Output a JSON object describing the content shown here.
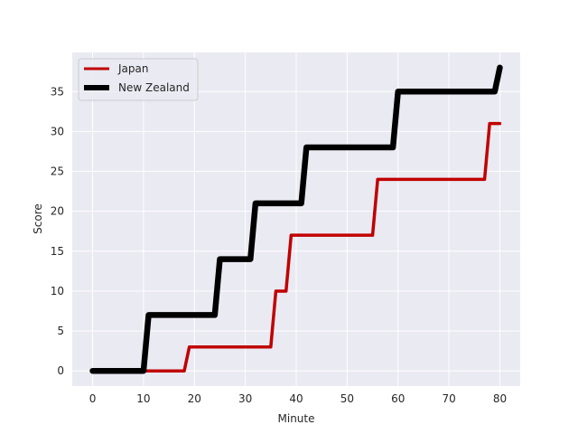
{
  "chart_data": {
    "type": "line",
    "title": "",
    "xlabel": "Minute",
    "ylabel": "Score",
    "xlim": [
      -4,
      84
    ],
    "ylim": [
      -1.9,
      39.9
    ],
    "xticks": [
      0,
      10,
      20,
      30,
      40,
      50,
      60,
      70,
      80
    ],
    "yticks": [
      0,
      5,
      10,
      15,
      20,
      25,
      30,
      35
    ],
    "grid": true,
    "legend_position": "top-left",
    "background": "#eaeaf2",
    "series": [
      {
        "name": "Japan",
        "color": "#c00000",
        "x": [
          0,
          18,
          19,
          35,
          36,
          38,
          39,
          55,
          56,
          77,
          78,
          80
        ],
        "y": [
          0,
          0,
          3,
          3,
          10,
          10,
          17,
          17,
          24,
          24,
          31,
          31
        ]
      },
      {
        "name": "New Zealand",
        "color": "#000000",
        "x": [
          0,
          10,
          11,
          24,
          25,
          31,
          32,
          41,
          42,
          59,
          60,
          79,
          80
        ],
        "y": [
          0,
          0,
          7,
          7,
          14,
          14,
          21,
          21,
          28,
          28,
          35,
          35,
          38
        ]
      }
    ]
  }
}
